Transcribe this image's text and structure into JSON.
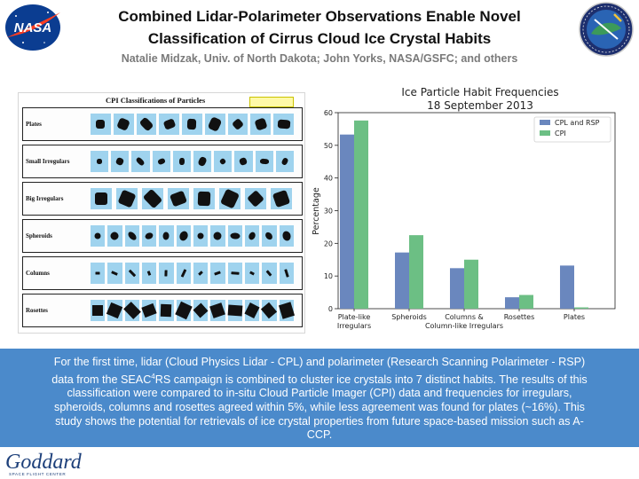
{
  "header": {
    "title_line1": "Combined Lidar-Polarimeter Observations Enable Novel",
    "title_line2": "Classification of Cirrus Cloud Ice Crystal Habits",
    "authors": "Natalie Midzak, Univ. of North Dakota; John Yorks, NASA/GSFC; and others"
  },
  "logos": {
    "nasa": "NASA",
    "goddard_script": "Goddard",
    "goddard_subtitle": "SPACE FLIGHT CENTER"
  },
  "cpi_panel": {
    "title": "CPI Classifications of Particles",
    "rows": [
      "Plates",
      "Small Irregulars",
      "Big Irregulars",
      "Spheroids",
      "Columns",
      "Rosettes"
    ]
  },
  "chart_data": {
    "type": "bar",
    "title_line1": "Ice Particle Habit Frequencies",
    "title_line2": "18 September 2013",
    "ylabel": "Percentage",
    "xlabel": "",
    "ylim": [
      0,
      60
    ],
    "yticks": [
      0,
      10,
      20,
      30,
      40,
      50,
      60
    ],
    "grid": false,
    "legend_position": "top-right",
    "categories": [
      [
        "Plate-like",
        "Irregulars"
      ],
      [
        "Spheroids"
      ],
      [
        "Columns &",
        "Column-like Irregulars"
      ],
      [
        "Rosettes"
      ],
      [
        "Plates"
      ]
    ],
    "series": [
      {
        "name": "CPL and RSP",
        "color": "#6a87be",
        "values": [
          53.3,
          17.2,
          12.4,
          3.5,
          13.2
        ]
      },
      {
        "name": "CPI",
        "color": "#6cbf84",
        "values": [
          57.6,
          22.5,
          15.0,
          4.2,
          0.4
        ]
      }
    ]
  },
  "caption": {
    "text": "For the first time, lidar (Cloud Physics Lidar - CPL) and polarimeter (Research Scanning Polarimeter - RSP) data from the SEAC4RS campaign is combined to cluster ice crystals into 7 distinct habits. The results of this classification were compared to in-situ Cloud Particle Imager (CPI) data and frequencies for irregulars, spheroids, columns and rosettes agreed within 5%, while less agreement was found for plates (~16%). This study shows the potential for retrievals of ice crystal properties from future space-based mission such as A-CCP."
  },
  "colors": {
    "caption_bg": "#4b8acb",
    "nasa_blue": "#0b3d91",
    "nasa_red": "#fc3d21"
  }
}
